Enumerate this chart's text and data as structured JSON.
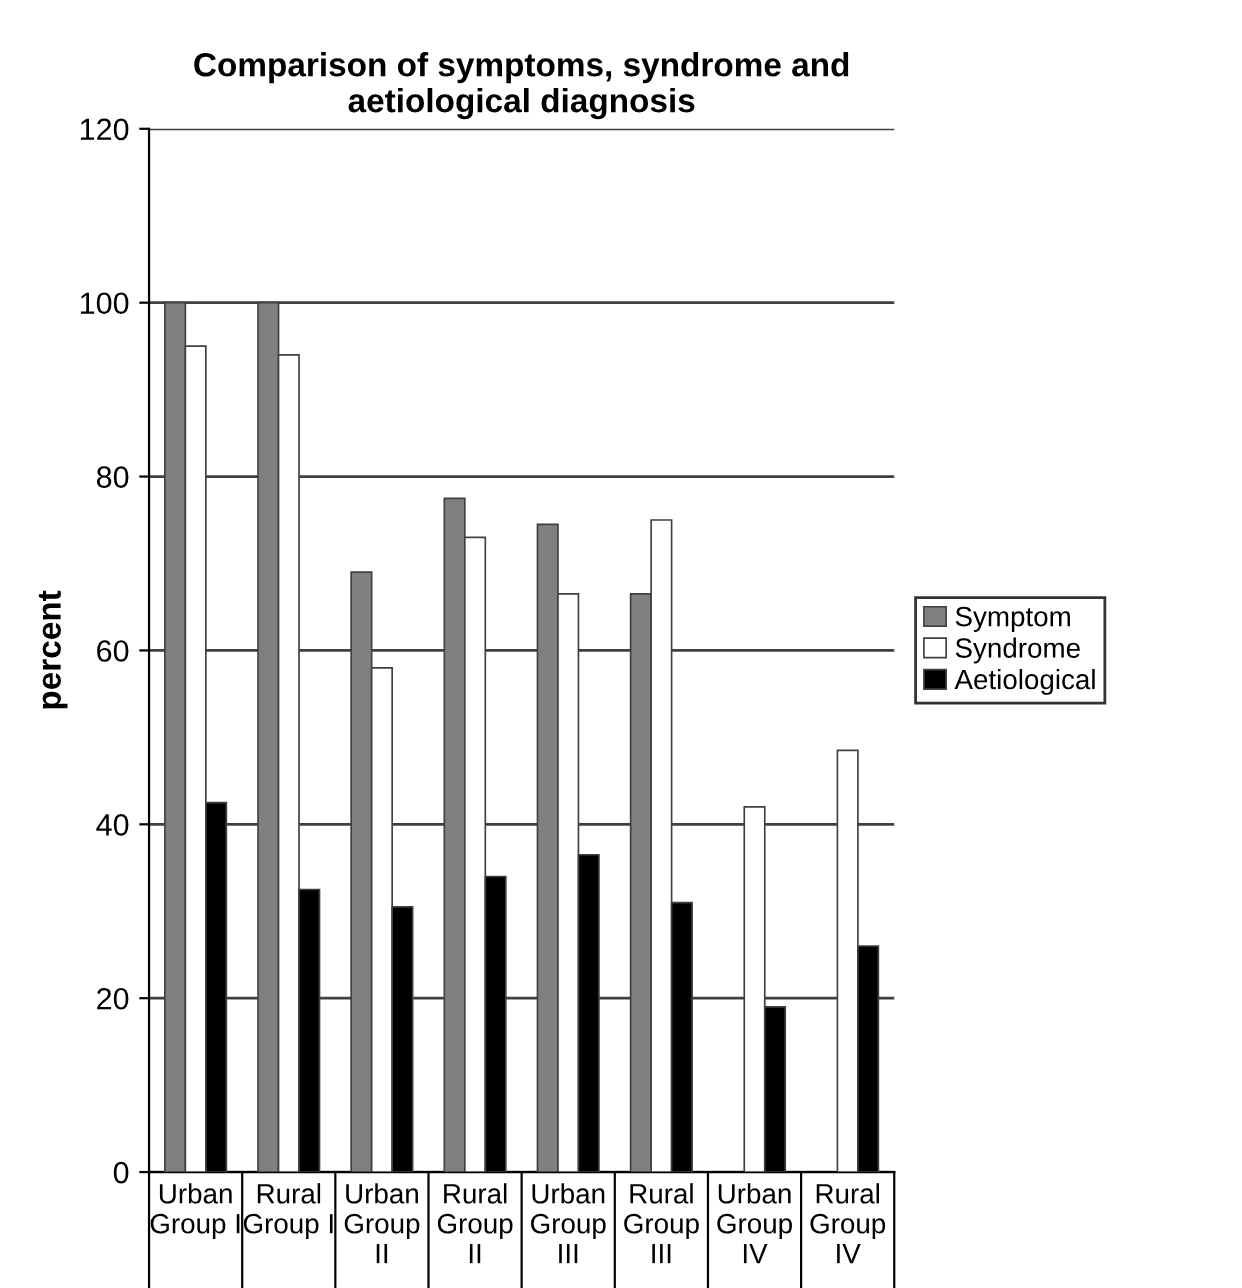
{
  "chart_data": {
    "type": "bar",
    "title": "Comparison of symptoms, syndrome and\naetiological diagnosis",
    "ylabel": "percent",
    "categories": [
      "Urban\nGroup I",
      "Rural\nGroup I",
      "Urban\nGroup\nII",
      "Rural\nGroup\nII",
      "Urban\nGroup\nIII",
      "Rural\nGroup\nIII",
      "Urban\nGroup\nIV",
      "Rural\nGroup\nIV"
    ],
    "series": [
      {
        "name": "Symptom",
        "color": "#808080",
        "values": [
          100,
          100,
          69,
          77.5,
          74.5,
          66.5,
          null,
          null
        ]
      },
      {
        "name": "Syndrome",
        "color": "#ffffff",
        "values": [
          95,
          94,
          58,
          73,
          66.5,
          75,
          42,
          48.5
        ]
      },
      {
        "name": "Aetiological",
        "color": "#000000",
        "values": [
          42.5,
          32.5,
          30.5,
          34,
          36.5,
          31,
          19,
          26
        ]
      }
    ],
    "ylim": [
      0,
      120
    ],
    "yticks": [
      0,
      20,
      40,
      60,
      80,
      100,
      120
    ],
    "grid": "y",
    "legend": "right"
  }
}
